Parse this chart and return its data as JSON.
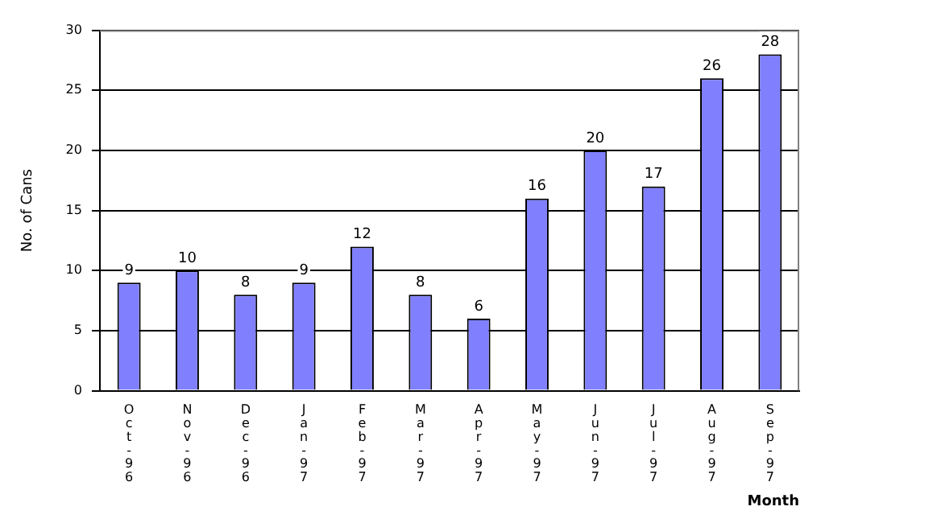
{
  "chart_data": {
    "type": "bar",
    "xlabel": "Month",
    "ylabel": "No. of Cans",
    "categories": [
      "Oct-96",
      "Nov-96",
      "Dec-96",
      "Jan-97",
      "Feb-97",
      "Mar-97",
      "Apr-97",
      "May-97",
      "Jun-97",
      "Jul-97",
      "Aug-97",
      "Sep-97"
    ],
    "values": [
      9,
      10,
      8,
      9,
      12,
      8,
      6,
      16,
      20,
      17,
      26,
      28
    ],
    "color": "#8080ff",
    "ylim": [
      0,
      30
    ],
    "yticks": [
      0,
      5,
      10,
      15,
      20,
      25,
      30
    ],
    "grid": "y",
    "legend": false,
    "data_labels": true
  }
}
